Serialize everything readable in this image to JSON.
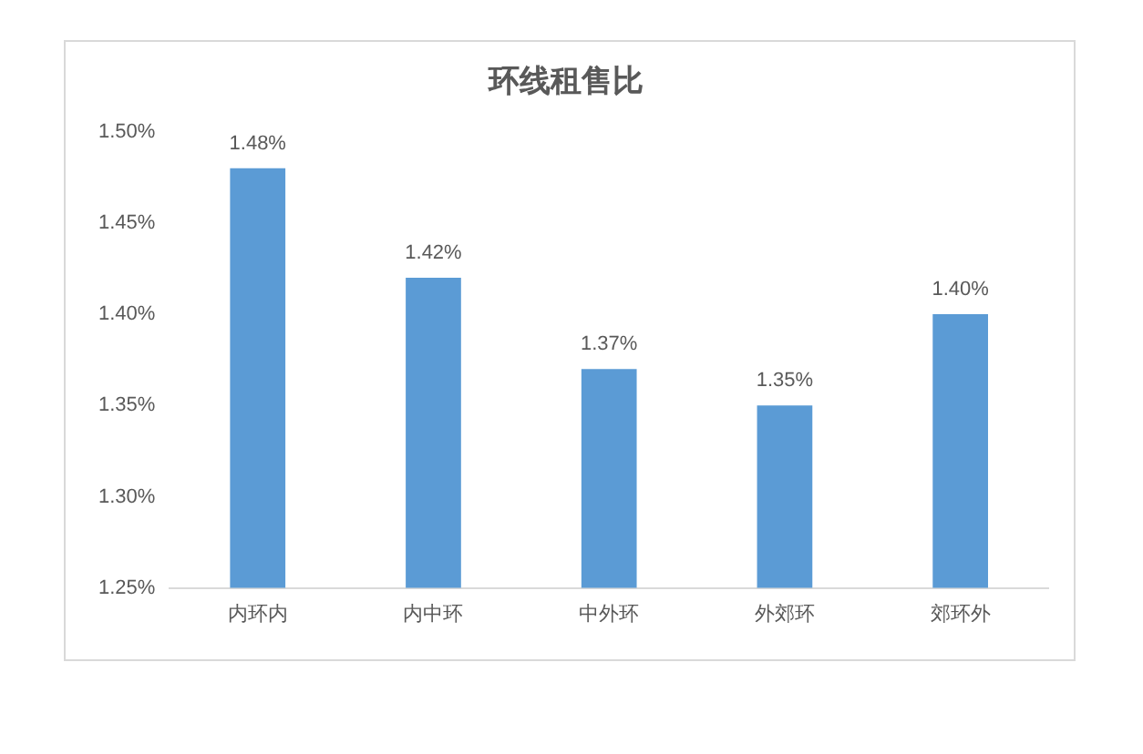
{
  "chart_data": {
    "type": "bar",
    "title": "环线租售比",
    "categories": [
      "内环内",
      "内中环",
      "中外环",
      "外郊环",
      "郊环外"
    ],
    "values": [
      1.48,
      1.42,
      1.37,
      1.35,
      1.4
    ],
    "color": "#5b9bd5",
    "value_labels": [
      "1.48%",
      "1.42%",
      "1.37%",
      "1.35%",
      "1.40%"
    ],
    "ylim": [
      1.25,
      1.5
    ],
    "yticks": [
      {
        "value": 1.25,
        "label": "1.25%"
      },
      {
        "value": 1.3,
        "label": "1.30%"
      },
      {
        "value": 1.35,
        "label": "1.35%"
      },
      {
        "value": 1.4,
        "label": "1.40%"
      },
      {
        "value": 1.45,
        "label": "1.45%"
      },
      {
        "value": 1.5,
        "label": "1.50%"
      }
    ]
  }
}
